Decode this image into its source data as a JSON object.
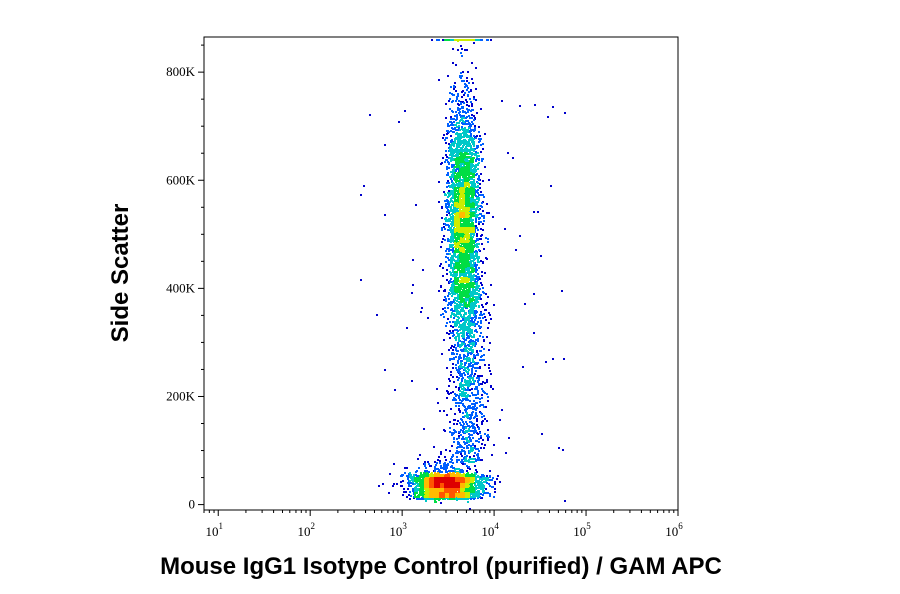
{
  "chart_data": {
    "type": "scatter",
    "style": "density-colored flow cytometry dot plot",
    "xlabel": "Mouse IgG1 Isotype Control (purified) / GAM APC",
    "ylabel": "Side Scatter",
    "x_scale": "log",
    "xlim": [
      7,
      1000000
    ],
    "ylim": [
      -10000,
      865000
    ],
    "x_ticks": [
      {
        "value": 10,
        "base": "10",
        "exp": "1"
      },
      {
        "value": 100,
        "base": "10",
        "exp": "2"
      },
      {
        "value": 1000,
        "base": "10",
        "exp": "3"
      },
      {
        "value": 10000,
        "base": "10",
        "exp": "4"
      },
      {
        "value": 100000,
        "base": "10",
        "exp": "5"
      },
      {
        "value": 1000000,
        "base": "10",
        "exp": "6"
      }
    ],
    "y_ticks": [
      {
        "value": 0,
        "label": "0"
      },
      {
        "value": 200000,
        "label": "200K"
      },
      {
        "value": 400000,
        "label": "400K"
      },
      {
        "value": 600000,
        "label": "600K"
      },
      {
        "value": 800000,
        "label": "800K"
      }
    ],
    "populations": [
      {
        "name": "low-SSC cluster",
        "x_center": 3000,
        "y_center": 40000,
        "x_spread_log10": 0.18,
        "y_spread": 28000,
        "events": 3000
      },
      {
        "name": "high-SSC cluster",
        "x_center": 4500,
        "y_center": 530000,
        "x_spread_log10": 0.09,
        "y_spread": 105000,
        "events": 3600
      },
      {
        "name": "connecting band",
        "x_center": 5000,
        "y_range": [
          80000,
          420000
        ],
        "x_spread_log10": 0.1,
        "events": 1000
      },
      {
        "name": "top saturation",
        "x_center": 4500,
        "y_center": 862000,
        "x_spread_log10": 0.12,
        "events": 160
      },
      {
        "name": "background",
        "x_range": [
          300,
          60000
        ],
        "y_range": [
          0,
          750000
        ],
        "events": 80
      }
    ],
    "density_colors": [
      "#0000cc",
      "#0060ff",
      "#00c8c8",
      "#00dd44",
      "#ccee00",
      "#ffbb00",
      "#ff5500",
      "#dd0000"
    ],
    "grid": false,
    "legend": "none"
  }
}
